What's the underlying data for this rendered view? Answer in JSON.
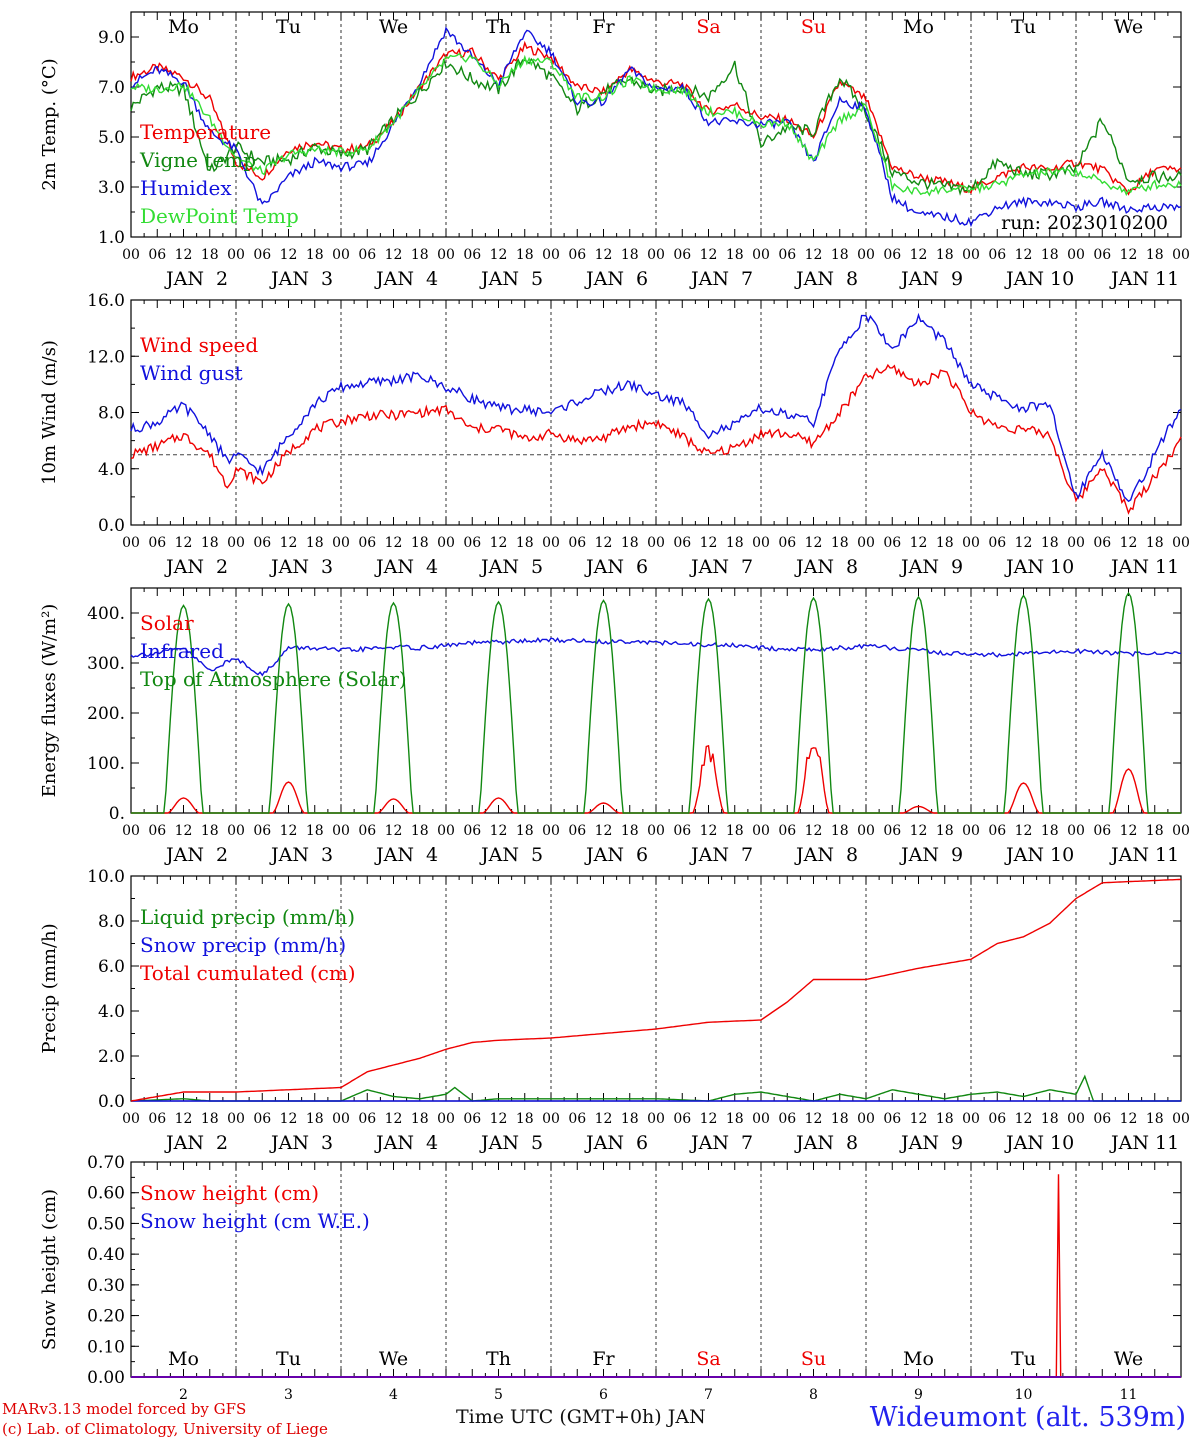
{
  "chart_data": [
    {
      "type": "line",
      "ylabel": "2m Temp. (°C)",
      "ylim": [
        1.0,
        10.0
      ],
      "yticks": [
        "1.0",
        "3.0",
        "5.0",
        "7.0",
        "9.0"
      ],
      "x_unit": "hours since 2023-01-02 00 UTC",
      "annotation": "run: 2023010200",
      "day_names": [
        "Mo",
        "Tu",
        "We",
        "Th",
        "Fr",
        "Sa",
        "Su",
        "Mo",
        "Tu",
        "We"
      ],
      "series": [
        {
          "name": "Temperature",
          "color": "#ee0000",
          "x": [
            0,
            6,
            12,
            18,
            24,
            30,
            36,
            42,
            48,
            54,
            60,
            66,
            72,
            78,
            84,
            90,
            96,
            102,
            108,
            114,
            120,
            126,
            132,
            138,
            144,
            150,
            156,
            162,
            168,
            174,
            180,
            186,
            192,
            198,
            204,
            210,
            216,
            222,
            228,
            234
          ],
          "y": [
            7.4,
            7.8,
            7.4,
            6.5,
            4.0,
            3.4,
            4.5,
            4.8,
            4.5,
            4.6,
            5.6,
            7.0,
            8.3,
            8.4,
            7.3,
            8.6,
            8.2,
            7.0,
            6.8,
            7.7,
            7.2,
            7.1,
            6.0,
            6.3,
            5.8,
            5.7,
            5.0,
            7.2,
            6.5,
            3.8,
            3.4,
            3.2,
            2.9,
            3.4,
            3.8,
            3.7,
            4.0,
            3.7,
            2.8,
            3.7
          ]
        },
        {
          "name": "Vigne temp",
          "color": "#118811",
          "x": [
            0,
            6,
            12,
            18,
            24,
            30,
            36,
            42,
            48,
            54,
            60,
            66,
            72,
            78,
            84,
            90,
            96,
            102,
            108,
            114,
            120,
            126,
            132,
            138,
            144,
            150,
            156,
            162,
            168,
            174,
            180,
            186,
            192,
            198,
            204,
            210,
            216,
            222,
            228,
            234
          ],
          "y": [
            6.2,
            7.0,
            6.9,
            3.6,
            4.6,
            4.0,
            4.1,
            4.6,
            4.3,
            4.5,
            5.7,
            6.8,
            8.0,
            7.3,
            6.9,
            8.2,
            7.4,
            6.1,
            6.8,
            7.3,
            6.8,
            7.0,
            6.6,
            7.9,
            4.7,
            5.4,
            5.2,
            7.4,
            6.0,
            3.6,
            3.2,
            3.0,
            2.9,
            4.0,
            3.5,
            3.5,
            3.7,
            5.7,
            3.3,
            3.4
          ]
        },
        {
          "name": "Humidex",
          "color": "#1111dd",
          "x": [
            0,
            6,
            12,
            18,
            24,
            30,
            36,
            42,
            48,
            54,
            60,
            66,
            72,
            78,
            84,
            90,
            96,
            102,
            108,
            114,
            120,
            126,
            132,
            138,
            144,
            150,
            156,
            162,
            168,
            174,
            180,
            186,
            192,
            198,
            204,
            210,
            216,
            222,
            228,
            234
          ],
          "y": [
            7.1,
            7.7,
            7.2,
            5.2,
            4.5,
            2.2,
            3.4,
            4.0,
            3.8,
            3.9,
            5.5,
            7.2,
            9.3,
            8.2,
            7.1,
            9.2,
            8.4,
            6.4,
            6.4,
            7.7,
            6.9,
            7.0,
            5.6,
            5.6,
            5.5,
            5.6,
            4.0,
            6.5,
            6.1,
            2.6,
            1.9,
            1.8,
            1.6,
            2.2,
            2.4,
            2.4,
            2.2,
            2.4,
            2.1,
            2.2
          ]
        },
        {
          "name": "DewPoint Temp",
          "color": "#33dd33",
          "x": [
            0,
            6,
            12,
            18,
            24,
            30,
            36,
            42,
            48,
            54,
            60,
            66,
            72,
            78,
            84,
            90,
            96,
            102,
            108,
            114,
            120,
            126,
            132,
            138,
            144,
            150,
            156,
            162,
            168,
            174,
            180,
            186,
            192,
            198,
            204,
            210,
            216,
            222,
            228,
            234
          ],
          "y": [
            7.0,
            6.9,
            7.1,
            5.7,
            4.2,
            3.6,
            4.3,
            4.5,
            4.4,
            4.5,
            5.6,
            6.9,
            8.1,
            8.2,
            7.1,
            8.1,
            8.0,
            6.6,
            6.6,
            7.3,
            6.9,
            6.9,
            6.0,
            6.0,
            5.5,
            5.6,
            4.0,
            5.7,
            6.2,
            3.0,
            2.8,
            2.9,
            2.9,
            3.1,
            3.5,
            3.6,
            3.6,
            3.2,
            2.8,
            3.1
          ]
        }
      ]
    },
    {
      "type": "line",
      "ylabel": "10m Wind (m/s)",
      "ylim": [
        0.0,
        16.0
      ],
      "yticks": [
        "0.0",
        "4.0",
        "8.0",
        "12.0",
        "16.0"
      ],
      "reference_line": 5.0,
      "series": [
        {
          "name": "Wind speed",
          "color": "#ee0000",
          "x": [
            0,
            6,
            12,
            18,
            22,
            24,
            30,
            36,
            42,
            48,
            54,
            60,
            66,
            72,
            78,
            84,
            90,
            96,
            102,
            108,
            114,
            120,
            126,
            132,
            138,
            144,
            150,
            156,
            162,
            168,
            174,
            180,
            186,
            192,
            198,
            204,
            210,
            216,
            222,
            228,
            234,
            240
          ],
          "y": [
            5.0,
            5.6,
            6.4,
            5.0,
            2.8,
            4.0,
            3.0,
            5.2,
            6.8,
            7.4,
            7.8,
            7.8,
            8.0,
            8.2,
            6.8,
            6.9,
            6.1,
            6.5,
            6.0,
            6.2,
            7.0,
            7.3,
            6.3,
            5.0,
            5.5,
            6.5,
            6.5,
            5.8,
            8.0,
            10.5,
            11.2,
            10.0,
            11.0,
            8.0,
            7.0,
            6.8,
            6.4,
            1.6,
            4.2,
            1.0,
            3.5,
            6.0
          ]
        },
        {
          "name": "Wind gust",
          "color": "#1111dd",
          "x": [
            0,
            6,
            12,
            18,
            22,
            24,
            30,
            36,
            42,
            48,
            54,
            60,
            66,
            72,
            78,
            84,
            90,
            96,
            102,
            108,
            114,
            120,
            126,
            132,
            138,
            144,
            150,
            156,
            162,
            168,
            174,
            180,
            186,
            192,
            198,
            204,
            210,
            216,
            222,
            228,
            234,
            240
          ],
          "y": [
            6.8,
            7.3,
            8.5,
            6.5,
            4.5,
            5.0,
            3.8,
            6.4,
            8.6,
            9.8,
            10.1,
            10.3,
            10.6,
            9.8,
            9.0,
            8.3,
            8.2,
            8.0,
            8.8,
            9.5,
            10.0,
            9.2,
            8.7,
            6.5,
            7.1,
            8.3,
            7.8,
            7.3,
            12.5,
            15.0,
            12.5,
            14.7,
            13.0,
            10.0,
            9.0,
            8.3,
            8.5,
            2.0,
            5.2,
            1.5,
            5.0,
            8.4
          ]
        }
      ]
    },
    {
      "type": "line",
      "ylabel": "Energy fluxes (W/m²)",
      "ylim": [
        0,
        450
      ],
      "yticks": [
        "0.",
        "100.",
        "200.",
        "300.",
        "400."
      ],
      "series": [
        {
          "name": "Solar",
          "color": "#ee0000",
          "day_peaks": [
            30,
            62,
            28,
            30,
            20,
            140,
            165,
            13,
            60,
            88
          ]
        },
        {
          "name": "Infrared",
          "color": "#1111dd",
          "x": [
            0,
            6,
            12,
            18,
            24,
            30,
            36,
            42,
            48,
            54,
            60,
            66,
            72,
            78,
            84,
            90,
            96,
            102,
            108,
            114,
            120,
            126,
            132,
            138,
            144,
            150,
            156,
            162,
            168,
            174,
            180,
            186,
            192,
            198,
            204,
            210,
            216,
            222,
            228,
            234,
            240
          ],
          "y": [
            315,
            320,
            330,
            285,
            310,
            275,
            330,
            330,
            325,
            328,
            332,
            330,
            335,
            340,
            342,
            344,
            346,
            345,
            342,
            344,
            341,
            338,
            336,
            335,
            330,
            328,
            327,
            330,
            333,
            330,
            325,
            320,
            318,
            316,
            318,
            322,
            324,
            322,
            318,
            320,
            320
          ]
        },
        {
          "name": "Top of Atmosphere (Solar)",
          "color": "#118811",
          "day_peaks": [
            415,
            418,
            420,
            422,
            425,
            428,
            430,
            432,
            435,
            440
          ]
        }
      ]
    },
    {
      "type": "line",
      "ylabel": "Precip (mm/h)",
      "ylim": [
        0.0,
        10.0
      ],
      "yticks": [
        "0.0",
        "2.0",
        "4.0",
        "6.0",
        "8.0",
        "10.0"
      ],
      "series": [
        {
          "name": "Liquid precip (mm/h)",
          "color": "#118811",
          "x": [
            0,
            12,
            18,
            48,
            54,
            60,
            66,
            72,
            74,
            78,
            84,
            96,
            120,
            132,
            138,
            144,
            156,
            162,
            168,
            174,
            180,
            186,
            192,
            198,
            204,
            210,
            216,
            218,
            220,
            240
          ],
          "y": [
            0,
            0.1,
            0,
            0,
            0.5,
            0.2,
            0.1,
            0.3,
            0.6,
            0,
            0.1,
            0.1,
            0.1,
            0,
            0.3,
            0.4,
            0,
            0.3,
            0.1,
            0.5,
            0.3,
            0.1,
            0.3,
            0.4,
            0.2,
            0.5,
            0.3,
            1.1,
            0,
            0
          ]
        },
        {
          "name": "Snow precip (mm/h)",
          "color": "#1111dd",
          "x": [
            0,
            240
          ],
          "y": [
            0,
            0
          ]
        },
        {
          "name": "Total cumulated (cm)",
          "color": "#ee0000",
          "x": [
            0,
            6,
            12,
            18,
            24,
            36,
            48,
            54,
            60,
            66,
            72,
            78,
            84,
            96,
            108,
            120,
            132,
            144,
            150,
            156,
            168,
            180,
            192,
            198,
            204,
            210,
            216,
            222,
            240
          ],
          "y": [
            0,
            0.2,
            0.4,
            0.4,
            0.4,
            0.5,
            0.6,
            1.3,
            1.6,
            1.9,
            2.3,
            2.6,
            2.7,
            2.8,
            3.0,
            3.2,
            3.5,
            3.6,
            4.4,
            5.4,
            5.4,
            5.9,
            6.3,
            7.0,
            7.3,
            7.9,
            9.0,
            9.7,
            9.85
          ]
        }
      ]
    },
    {
      "type": "line",
      "ylabel": "Snow height (cm)",
      "ylim": [
        0.0,
        0.7
      ],
      "yticks": [
        "0.00",
        "0.10",
        "0.20",
        "0.30",
        "0.40",
        "0.50",
        "0.60",
        "0.70"
      ],
      "series": [
        {
          "name": "Snow height (cm)",
          "color": "#ee0000",
          "x": [
            0,
            211.5,
            212,
            212.5,
            240
          ],
          "y": [
            0,
            0,
            0.66,
            0,
            0
          ]
        },
        {
          "name": "Snow height (cm W.E.)",
          "color": "#1111dd",
          "x": [
            0,
            240
          ],
          "y": [
            0,
            0
          ]
        }
      ]
    }
  ],
  "axes": {
    "hour_ticks": [
      "00",
      "06",
      "12",
      "18"
    ],
    "end_tick": "00",
    "date_labels": [
      "JAN  2",
      "JAN  3",
      "JAN  4",
      "JAN  5",
      "JAN  6",
      "JAN  7",
      "JAN  8",
      "JAN  9",
      "JAN 10",
      "JAN 11"
    ],
    "weekend_color": "#ee0000",
    "weekend_indices": [
      5,
      6
    ],
    "bottom_day_numbers": [
      "2",
      "3",
      "4",
      "5",
      "6",
      "7",
      "8",
      "9",
      "10",
      "11"
    ]
  },
  "footer": {
    "credit_line_1": "MARv3.13 model forced by GFS",
    "credit_line_2": "(c) Lab. of Climatology, University of Liege",
    "xlabel": "Time UTC (GMT+0h) JAN",
    "station": "Wideumont (alt. 539m)"
  }
}
